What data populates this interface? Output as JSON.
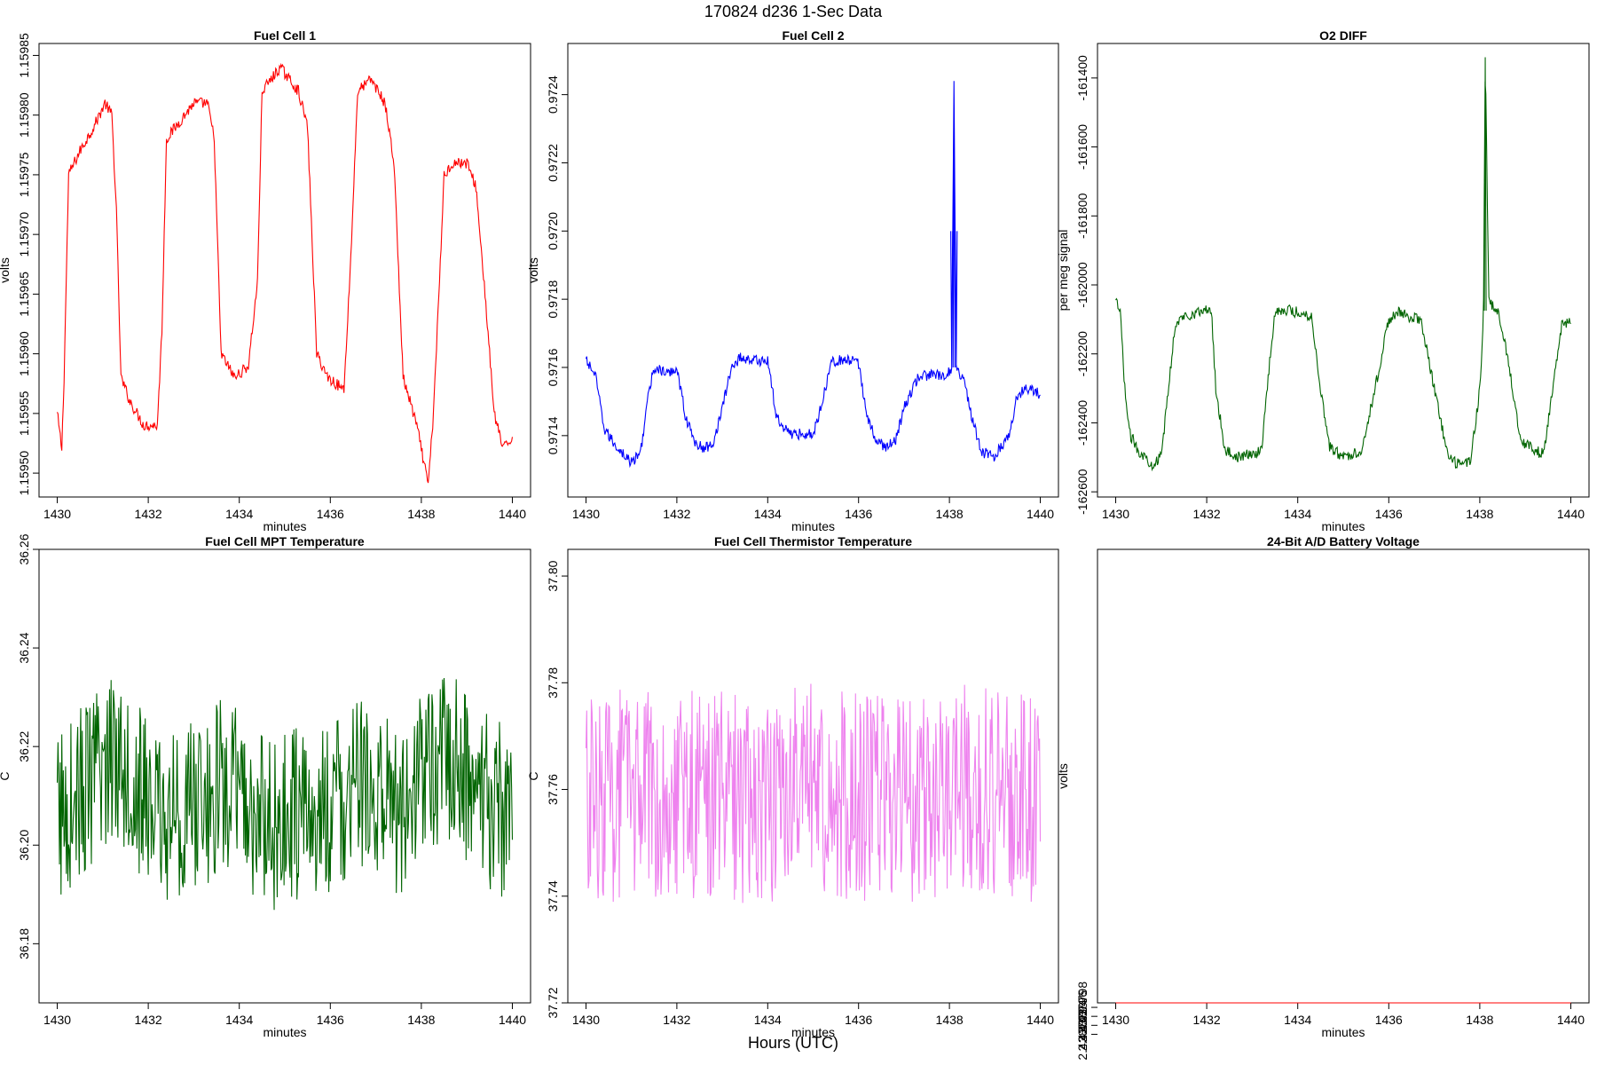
{
  "figure": {
    "title": "170824   d236   1-Sec Data",
    "xlabel": "Hours (UTC)"
  },
  "chart_data": [
    {
      "type": "line",
      "title": "Fuel Cell 1",
      "xlabel": "minutes",
      "ylabel": "volts",
      "color": "#ff0000",
      "xlim": [
        1430,
        1440
      ],
      "ylim": [
        1.15948,
        1.15986
      ],
      "xticks": [
        "1430",
        "1432",
        "1434",
        "1436",
        "1438",
        "1440"
      ],
      "yticks": [
        "1.15950",
        "1.15955",
        "1.15960",
        "1.15965",
        "1.15970",
        "1.15975",
        "1.15980",
        "1.15985"
      ],
      "series": [
        {
          "x": [
            1430.0,
            1430.1,
            1430.15,
            1430.25,
            1430.5,
            1430.8,
            1431.05,
            1431.2,
            1431.3,
            1431.4,
            1431.6,
            1431.9,
            1432.2,
            1432.3,
            1432.4,
            1432.8,
            1433.0,
            1433.3,
            1433.45,
            1433.6,
            1433.9,
            1434.2,
            1434.4,
            1434.5,
            1434.9,
            1435.3,
            1435.5,
            1435.7,
            1435.95,
            1436.3,
            1436.45,
            1436.6,
            1436.9,
            1437.2,
            1437.4,
            1437.6,
            1437.9,
            1438.15,
            1438.25,
            1438.4,
            1438.5,
            1438.7,
            1439.0,
            1439.2,
            1439.4,
            1439.6,
            1439.8,
            1440.0
          ],
          "y": [
            1.15955,
            1.15952,
            1.15958,
            1.15975,
            1.15977,
            1.15979,
            1.15981,
            1.1598,
            1.15972,
            1.15958,
            1.15956,
            1.15954,
            1.15954,
            1.15962,
            1.15978,
            1.1598,
            1.15981,
            1.15981,
            1.15978,
            1.1596,
            1.15958,
            1.15959,
            1.15966,
            1.15982,
            1.15984,
            1.15982,
            1.15979,
            1.1596,
            1.15958,
            1.15957,
            1.15968,
            1.15982,
            1.15983,
            1.15981,
            1.15976,
            1.15958,
            1.15954,
            1.15949,
            1.15954,
            1.15966,
            1.15975,
            1.15976,
            1.15976,
            1.15974,
            1.15965,
            1.15955,
            1.15952,
            1.15953
          ]
        }
      ]
    },
    {
      "type": "line",
      "title": "Fuel Cell 2",
      "xlabel": "minutes",
      "ylabel": "volts",
      "color": "#0000ff",
      "xlim": [
        1430,
        1440
      ],
      "ylim": [
        0.97122,
        0.97255
      ],
      "xticks": [
        "1430",
        "1432",
        "1434",
        "1436",
        "1438",
        "1440"
      ],
      "yticks": [
        "0.9714",
        "0.9716",
        "0.9718",
        "0.9720",
        "0.9722",
        "0.9724"
      ],
      "series": [
        {
          "x": [
            1430.0,
            1430.2,
            1430.4,
            1430.6,
            1430.8,
            1431.0,
            1431.2,
            1431.35,
            1431.5,
            1431.8,
            1432.0,
            1432.2,
            1432.4,
            1432.6,
            1432.8,
            1433.0,
            1433.2,
            1433.4,
            1433.7,
            1434.0,
            1434.2,
            1434.4,
            1434.6,
            1434.8,
            1435.0,
            1435.2,
            1435.4,
            1435.8,
            1436.0,
            1436.2,
            1436.4,
            1436.6,
            1436.8,
            1437.0,
            1437.3,
            1437.6,
            1437.9,
            1438.05,
            1438.1,
            1438.15,
            1438.3,
            1438.5,
            1438.7,
            1439.0,
            1439.3,
            1439.5,
            1439.7,
            1440.0
          ],
          "y": [
            0.97162,
            0.97158,
            0.97142,
            0.97138,
            0.97135,
            0.97132,
            0.97135,
            0.9715,
            0.9716,
            0.97158,
            0.9716,
            0.97145,
            0.97138,
            0.97136,
            0.97138,
            0.97148,
            0.9716,
            0.97163,
            0.97162,
            0.97162,
            0.97145,
            0.97142,
            0.9714,
            0.97141,
            0.9714,
            0.9715,
            0.97162,
            0.97162,
            0.97161,
            0.97145,
            0.97138,
            0.97137,
            0.97138,
            0.97148,
            0.97157,
            0.97158,
            0.97157,
            0.9716,
            0.97243,
            0.9716,
            0.97157,
            0.97145,
            0.97135,
            0.97134,
            0.9714,
            0.97152,
            0.97154,
            0.97152
          ]
        }
      ]
    },
    {
      "type": "line",
      "title": "O2 DIFF",
      "xlabel": "minutes",
      "ylabel": "per meg signal",
      "color": "#006400",
      "xlim": [
        1430,
        1440
      ],
      "ylim": [
        -162615,
        -161300
      ],
      "xticks": [
        "1430",
        "1432",
        "1434",
        "1436",
        "1438",
        "1440"
      ],
      "yticks": [
        "-162600",
        "-162400",
        "-162200",
        "-162000",
        "-161800",
        "-161600",
        "-161400"
      ],
      "series": [
        {
          "x": [
            1430.0,
            1430.1,
            1430.2,
            1430.3,
            1430.5,
            1430.8,
            1431.0,
            1431.2,
            1431.3,
            1431.5,
            1431.8,
            1432.1,
            1432.2,
            1432.4,
            1432.7,
            1433.0,
            1433.2,
            1433.4,
            1433.5,
            1433.7,
            1434.0,
            1434.3,
            1434.5,
            1434.7,
            1435.0,
            1435.2,
            1435.4,
            1435.7,
            1436.0,
            1436.2,
            1436.4,
            1436.7,
            1437.0,
            1437.3,
            1437.5,
            1437.8,
            1438.0,
            1438.08,
            1438.12,
            1438.2,
            1438.4,
            1438.6,
            1438.9,
            1439.2,
            1439.4,
            1439.6,
            1439.8,
            1440.0
          ],
          "y": [
            -162050,
            -162080,
            -162300,
            -162430,
            -162480,
            -162520,
            -162500,
            -162250,
            -162120,
            -162090,
            -162080,
            -162070,
            -162300,
            -162480,
            -162500,
            -162490,
            -162480,
            -162200,
            -162080,
            -162070,
            -162080,
            -162090,
            -162300,
            -162470,
            -162500,
            -162490,
            -162480,
            -162300,
            -162100,
            -162080,
            -162090,
            -162100,
            -162300,
            -162500,
            -162520,
            -162510,
            -162300,
            -162100,
            -161340,
            -162050,
            -162080,
            -162200,
            -162450,
            -162480,
            -162490,
            -162300,
            -162120,
            -162110
          ]
        }
      ]
    },
    {
      "type": "line",
      "title": "Fuel Cell MPT Temperature",
      "xlabel": "minutes",
      "ylabel": "C",
      "color": "#006400",
      "xlim": [
        1430,
        1440
      ],
      "ylim": [
        36.168,
        36.26
      ],
      "xticks": [
        "1430",
        "1432",
        "1434",
        "1436",
        "1438",
        "1440"
      ],
      "yticks": [
        "36.18",
        "36.20",
        "36.22",
        "36.24",
        "36.26"
      ],
      "series": [
        {
          "x": [
            1430.0,
            1430.4,
            1430.8,
            1431.3,
            1431.6,
            1432.0,
            1432.4,
            1432.8,
            1433.2,
            1433.6,
            1434.0,
            1434.4,
            1434.8,
            1435.2,
            1435.6,
            1436.0,
            1436.4,
            1436.8,
            1437.2,
            1437.6,
            1438.0,
            1438.4,
            1438.8,
            1439.2,
            1439.6,
            1440.0
          ],
          "y": [
            36.205,
            36.21,
            36.212,
            36.22,
            36.215,
            36.208,
            36.205,
            36.207,
            36.208,
            36.212,
            36.21,
            36.205,
            36.203,
            36.207,
            36.205,
            36.208,
            36.21,
            36.212,
            36.208,
            36.207,
            36.215,
            36.218,
            36.217,
            36.21,
            36.208,
            36.206
          ]
        }
      ],
      "y_spread": 0.018
    },
    {
      "type": "line",
      "title": "Fuel Cell Thermistor Temperature",
      "xlabel": "minutes",
      "ylabel": "C",
      "color": "#ee82ee",
      "xlim": [
        1430,
        1440
      ],
      "ylim": [
        37.72,
        37.805
      ],
      "xticks": [
        "1430",
        "1432",
        "1434",
        "1436",
        "1438",
        "1440"
      ],
      "yticks": [
        "37.72",
        "37.74",
        "37.76",
        "37.78",
        "37.80"
      ],
      "series": [
        {
          "x": [
            1430.0,
            1431.0,
            1432.0,
            1433.0,
            1434.0,
            1435.0,
            1436.0,
            1437.0,
            1438.0,
            1439.0,
            1440.0
          ],
          "y": [
            37.758,
            37.759,
            37.76,
            37.759,
            37.758,
            37.76,
            37.759,
            37.758,
            37.76,
            37.759,
            37.758
          ]
        }
      ],
      "y_spread": 0.02
    },
    {
      "type": "line",
      "title": "24-Bit A/D Battery Voltage",
      "xlabel": "minutes",
      "ylabel": "volts",
      "color": "#ff0000",
      "xlim": [
        1430,
        1440
      ],
      "ylim": [
        2.4389,
        2.438799
      ],
      "xticks": [
        "1430",
        "1432",
        "1434",
        "1436",
        "1438",
        "1440"
      ],
      "yticks": [
        "2.438792",
        "2.438794",
        "2.438796",
        "2.438798"
      ],
      "series": [
        {
          "x": [
            1430.0,
            1430.5,
            1431.0,
            1431.5,
            1432.0,
            1432.5,
            1433.0,
            1433.5,
            1434.0,
            1434.5,
            1435.0,
            1435.5,
            1436.0,
            1436.5,
            1437.0,
            1437.5,
            1438.0,
            1438.5,
            1439.0,
            1439.5,
            1440.0
          ],
          "y": [
            2.4387915,
            2.4387918,
            2.4387928,
            2.4387933,
            2.4387935,
            2.4387941,
            2.4387943,
            2.4387944,
            2.4387945,
            2.4387947,
            2.4387945,
            2.4387946,
            2.4387949,
            2.438795,
            2.4387952,
            2.4387952,
            2.4387953,
            2.4387958,
            2.438796,
            2.4387966,
            2.438797
          ]
        }
      ],
      "y_spread": 1.2e-06
    }
  ]
}
